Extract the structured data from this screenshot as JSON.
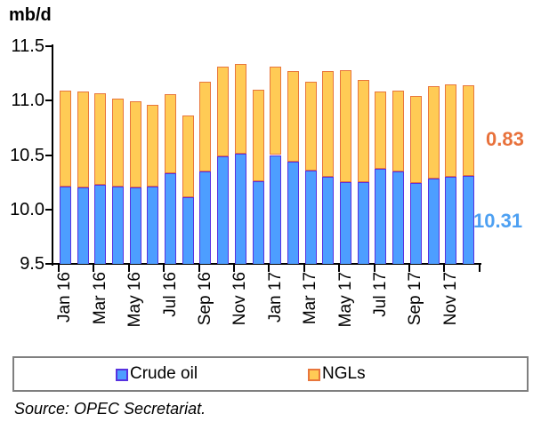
{
  "title": "mb/d",
  "source": "Source: OPEC Secretariat.",
  "annotations": {
    "ngls": "0.83",
    "crude": "10.31"
  },
  "legend": {
    "crude_label": "Crude oil",
    "ngls_label": "NGLs"
  },
  "colors": {
    "crude_fill": "#4D9EFF",
    "crude_border": "#5732E0",
    "ngls_fill": "#FFCB55",
    "ngls_border": "#E8763C",
    "annotation_ngls": "#E8713B",
    "annotation_crude": "#4DA0F2",
    "axis": "#000000",
    "legend_border": "#7F7F7F"
  },
  "chart_data": {
    "type": "bar",
    "stacked": true,
    "title": "mb/d",
    "ylabel": "mb/d",
    "xlabel": "",
    "ylim": [
      9.5,
      11.5
    ],
    "yticks": [
      9.5,
      10.0,
      10.5,
      11.0,
      11.5
    ],
    "grid": false,
    "legend_position": "bottom",
    "x_label_every": 2,
    "categories": [
      "Jan 16",
      "Feb 16",
      "Mar 16",
      "Apr 16",
      "May 16",
      "Jun 16",
      "Jul 16",
      "Aug 16",
      "Sep 16",
      "Oct 16",
      "Nov 16",
      "Dec 16",
      "Jan 17",
      "Feb 17",
      "Mar 17",
      "Apr 17",
      "May 17",
      "Jun 17",
      "Jul 17",
      "Aug 17",
      "Sep 17",
      "Oct 17",
      "Nov 17",
      "Dec 17"
    ],
    "series": [
      {
        "name": "Crude oil",
        "values": [
          10.21,
          10.2,
          10.23,
          10.21,
          10.2,
          10.21,
          10.33,
          10.11,
          10.35,
          10.49,
          10.51,
          10.26,
          10.5,
          10.44,
          10.36,
          10.3,
          10.25,
          10.25,
          10.37,
          10.35,
          10.24,
          10.28,
          10.3,
          10.31
        ]
      },
      {
        "name": "NGLs",
        "values": [
          0.88,
          0.88,
          0.84,
          0.81,
          0.79,
          0.75,
          0.73,
          0.75,
          0.82,
          0.82,
          0.83,
          0.84,
          0.81,
          0.83,
          0.81,
          0.97,
          1.03,
          0.94,
          0.71,
          0.74,
          0.8,
          0.85,
          0.85,
          0.83
        ]
      }
    ]
  }
}
